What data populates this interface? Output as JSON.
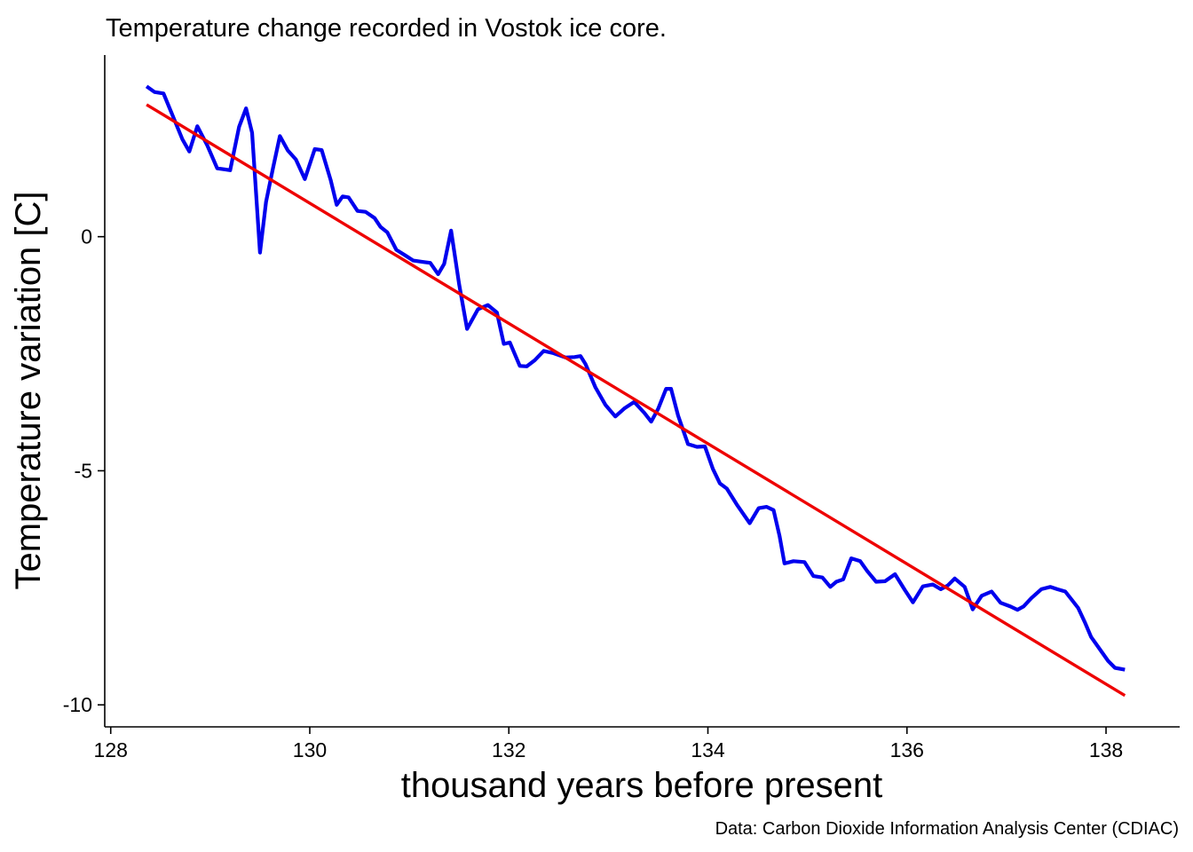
{
  "chart_data": {
    "type": "line",
    "title": "Temperature change recorded in Vostok ice core.",
    "xlabel": "thousand years before present",
    "ylabel": "Temperature variation [C]",
    "caption": "Data: Carbon Dioxide Information Analysis Center (CDIAC)",
    "xlim": [
      127.94,
      138.74
    ],
    "ylim": [
      -10.47,
      3.88
    ],
    "x_ticks": [
      128,
      130,
      132,
      134,
      136,
      138
    ],
    "y_ticks": [
      0,
      -5,
      -10
    ],
    "x_tick_labels": [
      "128",
      "130",
      "132",
      "134",
      "136",
      "138"
    ],
    "y_tick_labels": [
      "0",
      "-5",
      "-10"
    ],
    "grid": false,
    "colors": {
      "temperature": "#0000ee",
      "trend": "#ee0000",
      "axis": "#000000"
    },
    "series": [
      {
        "key": "temperature",
        "x": [
          128.36,
          128.44,
          128.53,
          128.62,
          128.72,
          128.79,
          128.87,
          128.97,
          129.07,
          129.2,
          129.29,
          129.36,
          129.42,
          129.5,
          129.56,
          129.63,
          129.7,
          129.78,
          129.86,
          129.95,
          130.05,
          130.12,
          130.21,
          130.27,
          130.33,
          130.39,
          130.48,
          130.56,
          130.65,
          130.71,
          130.78,
          130.87,
          130.96,
          131.04,
          131.14,
          131.21,
          131.29,
          131.35,
          131.42,
          131.5,
          131.58,
          131.69,
          131.79,
          131.88,
          131.95,
          132.01,
          132.11,
          132.18,
          132.26,
          132.35,
          132.45,
          132.57,
          132.66,
          132.72,
          132.77,
          132.87,
          132.97,
          133.07,
          133.16,
          133.26,
          133.36,
          133.43,
          133.5,
          133.58,
          133.63,
          133.7,
          133.8,
          133.89,
          133.97,
          134.05,
          134.12,
          134.19,
          134.29,
          134.42,
          134.51,
          134.59,
          134.66,
          134.72,
          134.77,
          134.86,
          134.97,
          135.06,
          135.15,
          135.23,
          135.29,
          135.36,
          135.44,
          135.53,
          135.6,
          135.69,
          135.78,
          135.88,
          135.98,
          136.06,
          136.16,
          136.26,
          136.34,
          136.41,
          136.48,
          136.58,
          136.66,
          136.75,
          136.85,
          136.94,
          137.04,
          137.11,
          137.17,
          137.25,
          137.35,
          137.44,
          137.51,
          137.59,
          137.65,
          137.72,
          137.79,
          137.85,
          137.93,
          138.02,
          138.09,
          138.19
        ],
        "y": [
          3.21,
          3.09,
          3.06,
          2.6,
          2.08,
          1.82,
          2.36,
          1.95,
          1.46,
          1.42,
          2.35,
          2.74,
          2.22,
          -0.34,
          0.74,
          1.46,
          2.15,
          1.84,
          1.65,
          1.23,
          1.87,
          1.85,
          1.21,
          0.68,
          0.86,
          0.84,
          0.55,
          0.53,
          0.4,
          0.21,
          0.09,
          -0.28,
          -0.4,
          -0.51,
          -0.54,
          -0.56,
          -0.8,
          -0.58,
          0.13,
          -1.01,
          -1.97,
          -1.55,
          -1.46,
          -1.62,
          -2.29,
          -2.26,
          -2.76,
          -2.77,
          -2.64,
          -2.44,
          -2.49,
          -2.58,
          -2.57,
          -2.55,
          -2.72,
          -3.22,
          -3.59,
          -3.84,
          -3.67,
          -3.53,
          -3.76,
          -3.95,
          -3.68,
          -3.25,
          -3.25,
          -3.82,
          -4.43,
          -4.49,
          -4.48,
          -4.96,
          -5.27,
          -5.38,
          -5.72,
          -6.12,
          -5.8,
          -5.77,
          -5.84,
          -6.39,
          -6.98,
          -6.93,
          -6.95,
          -7.25,
          -7.28,
          -7.48,
          -7.37,
          -7.32,
          -6.87,
          -6.93,
          -7.14,
          -7.37,
          -7.36,
          -7.21,
          -7.55,
          -7.81,
          -7.47,
          -7.43,
          -7.53,
          -7.45,
          -7.3,
          -7.48,
          -7.96,
          -7.67,
          -7.58,
          -7.82,
          -7.9,
          -7.97,
          -7.9,
          -7.72,
          -7.53,
          -7.48,
          -7.53,
          -7.58,
          -7.74,
          -7.93,
          -8.25,
          -8.55,
          -8.79,
          -9.06,
          -9.21,
          -9.25
        ]
      },
      {
        "key": "trend",
        "x": [
          128.36,
          138.19
        ],
        "y": [
          2.82,
          -9.8
        ]
      }
    ]
  }
}
